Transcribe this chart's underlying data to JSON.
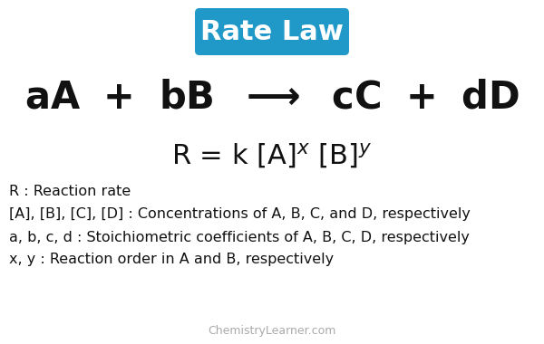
{
  "title": "Rate Law",
  "title_bg_color": "#2098c8",
  "title_text_color": "#ffffff",
  "title_fontsize": 22,
  "reaction_fontsize": 30,
  "rate_law_fontsize": 22,
  "def_fontsize": 11.5,
  "definitions": [
    "R : Reaction rate",
    "[A], [B], [C], [D] : Concentrations of A, B, C, and D, respectively",
    "a, b, c, d : Stoichiometric coefficients of A, B, C, D, respectively",
    "x, y : Reaction order in A and B, respectively"
  ],
  "watermark": "ChemistryLearner.com",
  "watermark_color": "#aaaaaa",
  "watermark_fontsize": 9,
  "bg_color": "#ffffff",
  "text_color": "#111111"
}
